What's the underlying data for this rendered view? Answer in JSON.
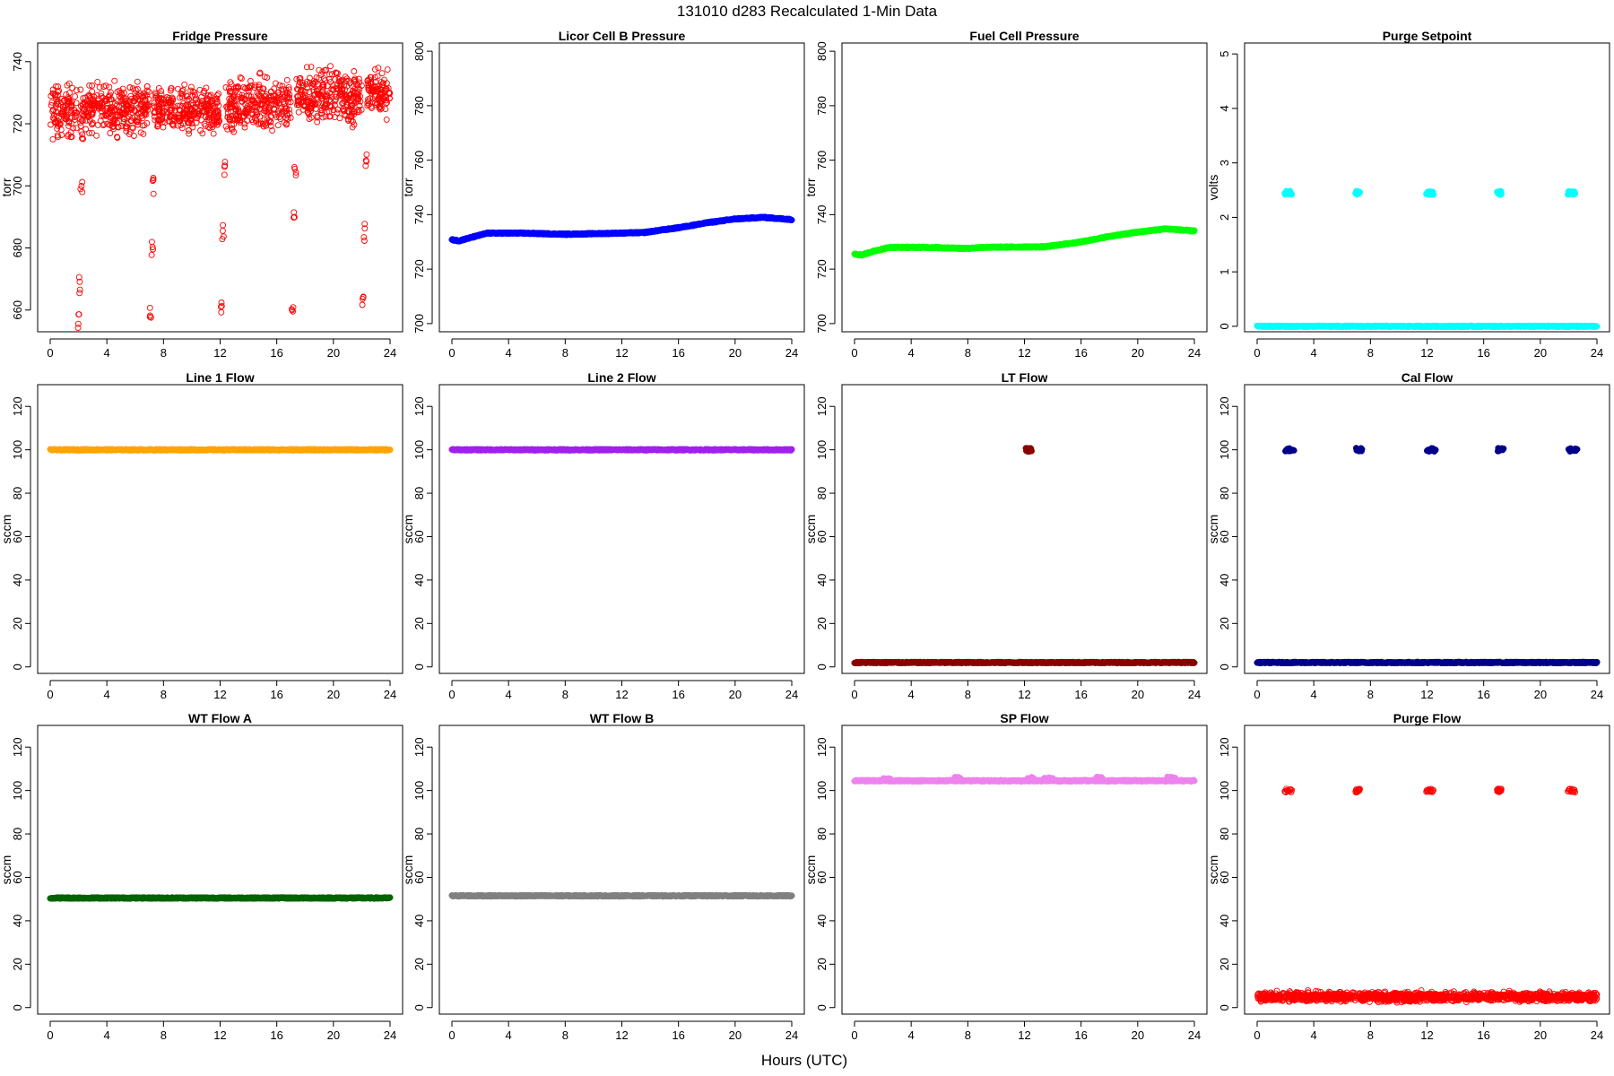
{
  "figure": {
    "title": "131010   d283   Recalculated 1-Min Data",
    "xlabel": "Hours (UTC)"
  },
  "chart_data": [
    {
      "type": "scatter",
      "title": "Fridge Pressure",
      "ylabel": "torr",
      "color": "#ff0000",
      "marker": "open-circle",
      "xlim": [
        0,
        24
      ],
      "ylim": [
        653,
        746
      ],
      "xticks": [
        0,
        4,
        8,
        12,
        16,
        20,
        24
      ],
      "yticks": [
        660,
        680,
        700,
        720,
        740
      ],
      "series": [
        {
          "kind": "noisy-band",
          "segments": [
            {
              "x": [
                0,
                1.9
              ],
              "lo": 712,
              "hi": 736
            },
            {
              "x": [
                2.1,
                7
              ],
              "lo": 714,
              "hi": 736
            },
            {
              "x": [
                7.3,
                12
              ],
              "lo": 714,
              "hi": 734
            },
            {
              "x": [
                12.4,
                17
              ],
              "lo": 714,
              "hi": 738
            },
            {
              "x": [
                17.4,
                22
              ],
              "lo": 716,
              "hi": 742
            },
            {
              "x": [
                22.4,
                24
              ],
              "lo": 720,
              "hi": 740
            }
          ]
        },
        {
          "kind": "drops",
          "points": [
            [
              2.0,
              656
            ],
            [
              2.1,
              668
            ],
            [
              2.2,
              700
            ],
            [
              2.3,
              715
            ],
            [
              7.1,
              660
            ],
            [
              7.2,
              680
            ],
            [
              7.3,
              700
            ],
            [
              12.1,
              660
            ],
            [
              12.2,
              685
            ],
            [
              12.3,
              705
            ],
            [
              17.1,
              661
            ],
            [
              17.2,
              690
            ],
            [
              17.3,
              705
            ],
            [
              22.1,
              663
            ],
            [
              22.2,
              685
            ],
            [
              22.3,
              708
            ]
          ]
        }
      ]
    },
    {
      "type": "scatter",
      "title": "Licor Cell B Pressure",
      "ylabel": "torr",
      "color": "#0000ff",
      "marker": "filled-circle",
      "xlim": [
        0,
        24
      ],
      "ylim": [
        697,
        803
      ],
      "xticks": [
        0,
        4,
        8,
        12,
        16,
        20,
        24
      ],
      "yticks": [
        700,
        720,
        740,
        760,
        780,
        800
      ],
      "series": [
        {
          "kind": "line",
          "points": [
            [
              0,
              730.8
            ],
            [
              0.5,
              730.4
            ],
            [
              1.5,
              731.8
            ],
            [
              2.5,
              733.2
            ],
            [
              5,
              733.2
            ],
            [
              8,
              732.8
            ],
            [
              10,
              733
            ],
            [
              13.5,
              733.4
            ],
            [
              16,
              735.2
            ],
            [
              18,
              737
            ],
            [
              20,
              738.4
            ],
            [
              22,
              739
            ],
            [
              24,
              738.2
            ]
          ]
        }
      ]
    },
    {
      "type": "scatter",
      "title": "Fuel Cell Pressure",
      "ylabel": "torr",
      "color": "#00ff00",
      "marker": "filled-circle",
      "xlim": [
        0,
        24
      ],
      "ylim": [
        697,
        803
      ],
      "xticks": [
        0,
        4,
        8,
        12,
        16,
        20,
        24
      ],
      "yticks": [
        700,
        720,
        740,
        760,
        780,
        800
      ],
      "series": [
        {
          "kind": "line",
          "points": [
            [
              0,
              725.6
            ],
            [
              0.5,
              725.2
            ],
            [
              1.5,
              726.8
            ],
            [
              2.5,
              728
            ],
            [
              5,
              728
            ],
            [
              8,
              727.6
            ],
            [
              9,
              728
            ],
            [
              13.5,
              728.2
            ],
            [
              16,
              730
            ],
            [
              18,
              732
            ],
            [
              20,
              733.6
            ],
            [
              22,
              734.8
            ],
            [
              24,
              734
            ]
          ]
        }
      ]
    },
    {
      "type": "scatter",
      "title": "Purge Setpoint",
      "ylabel": "volts",
      "color": "#00ffff",
      "marker": "filled-circle",
      "xlim": [
        0,
        24
      ],
      "ylim": [
        -0.1,
        5.2
      ],
      "xticks": [
        0,
        4,
        8,
        12,
        16,
        20,
        24
      ],
      "yticks": [
        0,
        1,
        2,
        3,
        4,
        5
      ],
      "series": [
        {
          "kind": "baseline",
          "y": 0,
          "x": [
            0,
            24
          ]
        },
        {
          "kind": "blips",
          "y": 2.45,
          "centers": [
            2.2,
            7.1,
            12.2,
            17.1,
            22.2
          ],
          "widths": [
            0.5,
            0.3,
            0.5,
            0.3,
            0.5
          ]
        }
      ]
    },
    {
      "type": "scatter",
      "title": "Line 1 Flow",
      "ylabel": "sccm",
      "color": "#ffa500",
      "marker": "filled-circle",
      "xlim": [
        0,
        24
      ],
      "ylim": [
        -3,
        130
      ],
      "xticks": [
        0,
        4,
        8,
        12,
        16,
        20,
        24
      ],
      "yticks": [
        0,
        20,
        40,
        60,
        80,
        100,
        120
      ],
      "series": [
        {
          "kind": "baseline",
          "y": 100,
          "x": [
            0,
            24
          ]
        }
      ]
    },
    {
      "type": "scatter",
      "title": "Line 2 Flow",
      "ylabel": "sccm",
      "color": "#a020f0",
      "marker": "filled-circle",
      "xlim": [
        0,
        24
      ],
      "ylim": [
        -3,
        130
      ],
      "xticks": [
        0,
        4,
        8,
        12,
        16,
        20,
        24
      ],
      "yticks": [
        0,
        20,
        40,
        60,
        80,
        100,
        120
      ],
      "series": [
        {
          "kind": "baseline",
          "y": 100,
          "x": [
            0,
            24
          ]
        }
      ]
    },
    {
      "type": "scatter",
      "title": "LT Flow",
      "ylabel": "sccm",
      "color": "#8b0000",
      "marker": "filled-circle",
      "xlim": [
        0,
        24
      ],
      "ylim": [
        -3,
        130
      ],
      "xticks": [
        0,
        4,
        8,
        12,
        16,
        20,
        24
      ],
      "yticks": [
        0,
        20,
        40,
        60,
        80,
        100,
        120
      ],
      "series": [
        {
          "kind": "baseline",
          "y": 2,
          "x": [
            0,
            24
          ]
        },
        {
          "kind": "blips",
          "y": 100,
          "centers": [
            12.3
          ],
          "widths": [
            0.4
          ]
        }
      ]
    },
    {
      "type": "scatter",
      "title": "Cal Flow",
      "ylabel": "sccm",
      "color": "#00008b",
      "marker": "filled-circle",
      "xlim": [
        0,
        24
      ],
      "ylim": [
        -3,
        130
      ],
      "xticks": [
        0,
        4,
        8,
        12,
        16,
        20,
        24
      ],
      "yticks": [
        0,
        20,
        40,
        60,
        80,
        100,
        120
      ],
      "series": [
        {
          "kind": "baseline",
          "y": 2,
          "x": [
            0,
            24
          ]
        },
        {
          "kind": "blips",
          "y": 100,
          "centers": [
            2.3,
            7.2,
            12.3,
            17.2,
            22.3
          ],
          "widths": [
            0.6,
            0.4,
            0.6,
            0.4,
            0.6
          ]
        }
      ]
    },
    {
      "type": "scatter",
      "title": "WT Flow A",
      "ylabel": "sccm",
      "color": "#006400",
      "marker": "filled-circle",
      "xlim": [
        0,
        24
      ],
      "ylim": [
        -3,
        130
      ],
      "xticks": [
        0,
        4,
        8,
        12,
        16,
        20,
        24
      ],
      "yticks": [
        0,
        20,
        40,
        60,
        80,
        100,
        120
      ],
      "series": [
        {
          "kind": "baseline",
          "y": 50.5,
          "x": [
            0,
            24
          ]
        }
      ]
    },
    {
      "type": "scatter",
      "title": "WT Flow B",
      "ylabel": "sccm",
      "color": "#808080",
      "marker": "filled-circle",
      "xlim": [
        0,
        24
      ],
      "ylim": [
        -3,
        130
      ],
      "xticks": [
        0,
        4,
        8,
        12,
        16,
        20,
        24
      ],
      "yticks": [
        0,
        20,
        40,
        60,
        80,
        100,
        120
      ],
      "series": [
        {
          "kind": "baseline",
          "y": 51.5,
          "x": [
            0,
            24
          ]
        }
      ]
    },
    {
      "type": "scatter",
      "title": "SP Flow",
      "ylabel": "sccm",
      "color": "#ee82ee",
      "marker": "filled-circle",
      "xlim": [
        0,
        24
      ],
      "ylim": [
        -3,
        130
      ],
      "xticks": [
        0,
        4,
        8,
        12,
        16,
        20,
        24
      ],
      "yticks": [
        0,
        20,
        40,
        60,
        80,
        100,
        120
      ],
      "series": [
        {
          "kind": "baseline",
          "y": 104.5,
          "x": [
            0,
            24
          ]
        },
        {
          "kind": "blips",
          "y": 105.5,
          "centers": [
            2.3,
            7.3,
            12.4,
            13.7,
            17.3,
            22.4
          ],
          "widths": [
            0.5,
            0.4,
            0.6,
            0.7,
            0.4,
            0.6
          ]
        }
      ]
    },
    {
      "type": "scatter",
      "title": "Purge Flow",
      "ylabel": "sccm",
      "color": "#ff0000",
      "marker": "open-circle",
      "xlim": [
        0,
        24
      ],
      "ylim": [
        -3,
        130
      ],
      "xticks": [
        0,
        4,
        8,
        12,
        16,
        20,
        24
      ],
      "yticks": [
        0,
        20,
        40,
        60,
        80,
        100,
        120
      ],
      "series": [
        {
          "kind": "noisy-band",
          "segments": [
            {
              "x": [
                0,
                24
              ],
              "lo": 2,
              "hi": 8
            }
          ]
        },
        {
          "kind": "blips",
          "y": 100,
          "centers": [
            2.2,
            7.1,
            12.2,
            17.1,
            22.2
          ],
          "widths": [
            0.5,
            0.3,
            0.5,
            0.3,
            0.5
          ]
        }
      ]
    }
  ]
}
